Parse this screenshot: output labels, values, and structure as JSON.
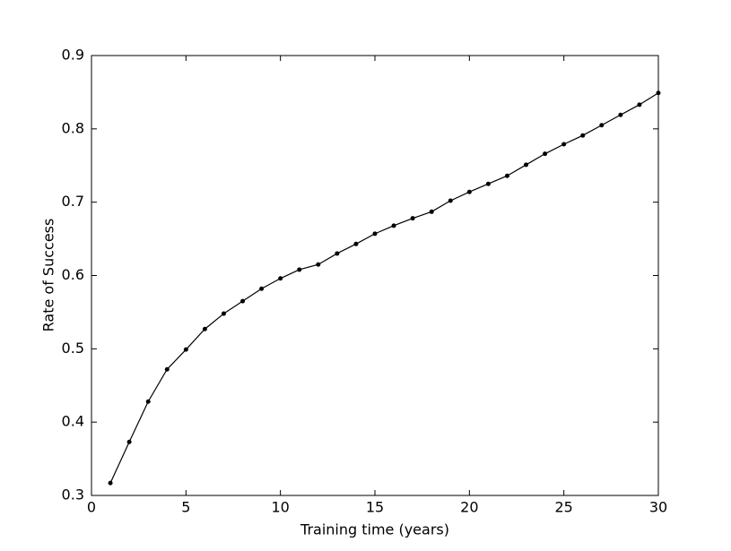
{
  "chart_data": {
    "type": "line",
    "xlabel": "Training time (years)",
    "ylabel": "Rate of Success",
    "x": [
      1,
      2,
      3,
      4,
      5,
      6,
      7,
      8,
      9,
      10,
      11,
      12,
      13,
      14,
      15,
      16,
      17,
      18,
      19,
      20,
      21,
      22,
      23,
      24,
      25,
      26,
      27,
      28,
      29,
      30
    ],
    "values": [
      0.317,
      0.373,
      0.428,
      0.472,
      0.499,
      0.527,
      0.548,
      0.565,
      0.582,
      0.596,
      0.608,
      0.615,
      0.63,
      0.643,
      0.657,
      0.668,
      0.678,
      0.687,
      0.702,
      0.714,
      0.725,
      0.736,
      0.751,
      0.766,
      0.779,
      0.791,
      0.805,
      0.819,
      0.833,
      0.849
    ],
    "color": "#000000",
    "xlim": [
      0,
      30
    ],
    "xticks": [
      0,
      5,
      10,
      15,
      20,
      25,
      30
    ],
    "ylim": [
      0.3,
      0.9
    ],
    "yticks": [
      0.3,
      0.4,
      0.5,
      0.6,
      0.7,
      0.8,
      0.9
    ],
    "grid": false
  }
}
